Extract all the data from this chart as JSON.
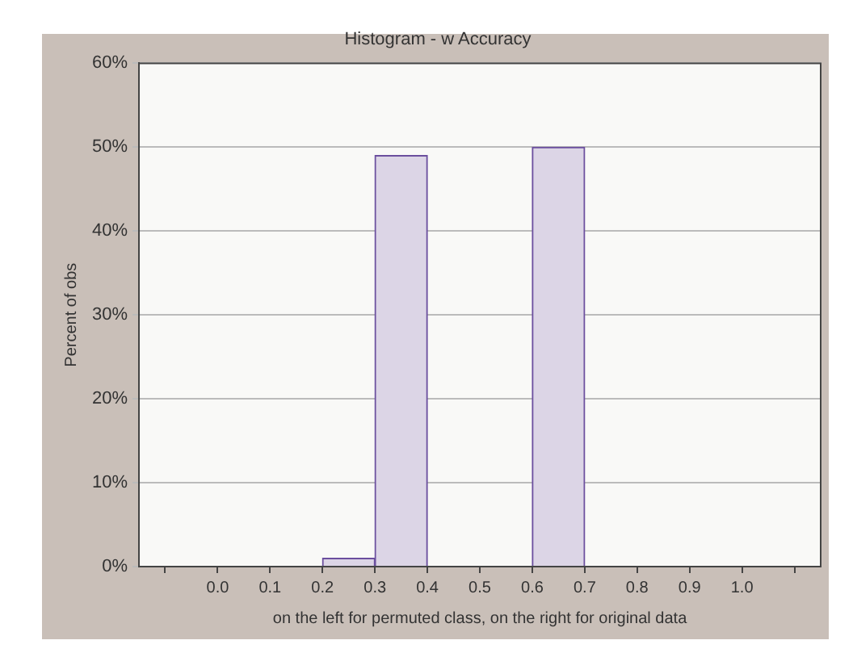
{
  "chart_data": {
    "type": "histogram",
    "title": "Histogram - w Accuracy",
    "xlabel": "on the left for permuted class, on the right for original data",
    "ylabel": "Percent of obs",
    "bins": [
      -0.1,
      0,
      0.1,
      0.2,
      0.3,
      0.4,
      0.5,
      0.6,
      0.7,
      0.8,
      0.9,
      1.0,
      1.1
    ],
    "values": [
      0,
      0,
      0,
      1,
      49,
      0,
      0,
      50,
      0,
      0,
      0,
      0
    ],
    "color": "#dcd5e6",
    "xlim": [
      -0.15,
      1.15
    ],
    "xticks": [
      {
        "value": -0.1,
        "label": null
      },
      {
        "value": 0,
        "label": "0.0"
      },
      {
        "value": 0.1,
        "label": "0.1"
      },
      {
        "value": 0.2,
        "label": "0.2"
      },
      {
        "value": 0.3,
        "label": "0.3"
      },
      {
        "value": 0.4,
        "label": "0.4"
      },
      {
        "value": 0.5,
        "label": "0.5"
      },
      {
        "value": 0.6,
        "label": "0.6"
      },
      {
        "value": 0.7,
        "label": "0.7"
      },
      {
        "value": 0.8,
        "label": "0.8"
      },
      {
        "value": 0.9,
        "label": "0.9"
      },
      {
        "value": 1.0,
        "label": "1.0"
      },
      {
        "value": 1.1,
        "label": null
      }
    ],
    "ylim": [
      0,
      60
    ],
    "yticks": [
      {
        "value": 0,
        "label": "0%"
      },
      {
        "value": 10,
        "label": "10%"
      },
      {
        "value": 20,
        "label": "20%"
      },
      {
        "value": 30,
        "label": "30%"
      },
      {
        "value": 40,
        "label": "40%"
      },
      {
        "value": 50,
        "label": "50%"
      },
      {
        "value": 60,
        "label": "60%"
      }
    ],
    "grid": "y",
    "legend": false
  }
}
